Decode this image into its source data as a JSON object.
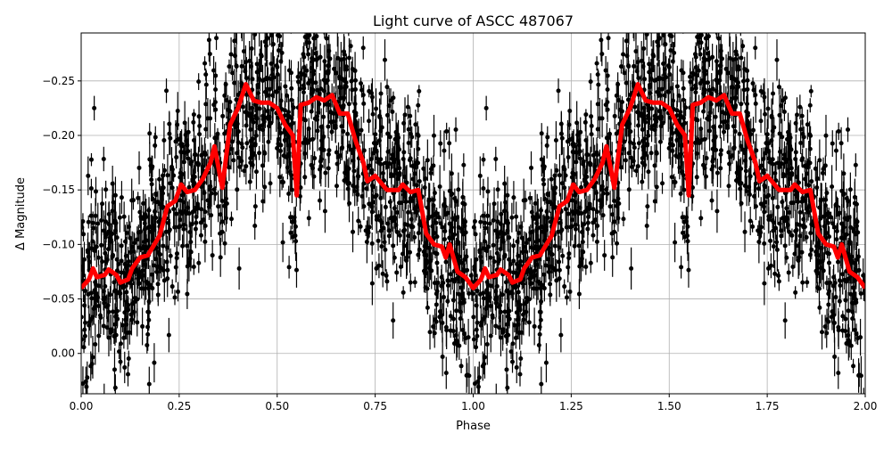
{
  "chart_data": {
    "type": "scatter",
    "title": "Light curve of ASCC 487067",
    "xlabel": "Phase",
    "ylabel": "Δ Magnitude",
    "xlim": [
      0,
      2
    ],
    "ylim": [
      0.037,
      -0.294
    ],
    "y_inverted": true,
    "grid": true,
    "x_ticks": [
      "0.00",
      "0.25",
      "0.50",
      "0.75",
      "1.00",
      "1.25",
      "1.50",
      "1.75",
      "2.00"
    ],
    "x_tick_values": [
      0,
      0.25,
      0.5,
      0.75,
      1,
      1.25,
      1.5,
      1.75,
      2
    ],
    "y_ticks": [
      "0.00",
      "−0.05",
      "−0.10",
      "−0.15",
      "−0.20",
      "−0.25"
    ],
    "y_tick_values": [
      0,
      -0.05,
      -0.1,
      -0.15,
      -0.2,
      -0.25
    ],
    "scatter_color": "#000000",
    "curve_color": "#ff0000",
    "binned_curve": {
      "period_repeats": 2,
      "phase": [
        0,
        0.02,
        0.03,
        0.04,
        0.06,
        0.07,
        0.09,
        0.1,
        0.12,
        0.13,
        0.15,
        0.17,
        0.2,
        0.22,
        0.24,
        0.255,
        0.27,
        0.29,
        0.31,
        0.33,
        0.34,
        0.36,
        0.38,
        0.4,
        0.42,
        0.44,
        0.46,
        0.48,
        0.5,
        0.52,
        0.54,
        0.55,
        0.56,
        0.58,
        0.6,
        0.62,
        0.64,
        0.66,
        0.68,
        0.7,
        0.72,
        0.73,
        0.75,
        0.78,
        0.81,
        0.82,
        0.84,
        0.86,
        0.88,
        0.9,
        0.92,
        0.93,
        0.94,
        0.96,
        0.98,
        1.0
      ],
      "magnitude": [
        -0.06,
        -0.068,
        -0.078,
        -0.07,
        -0.072,
        -0.077,
        -0.072,
        -0.065,
        -0.068,
        -0.078,
        -0.088,
        -0.09,
        -0.108,
        -0.135,
        -0.14,
        -0.155,
        -0.148,
        -0.15,
        -0.16,
        -0.175,
        -0.19,
        -0.152,
        -0.21,
        -0.225,
        -0.247,
        -0.232,
        -0.23,
        -0.23,
        -0.225,
        -0.21,
        -0.2,
        -0.145,
        -0.228,
        -0.23,
        -0.235,
        -0.232,
        -0.237,
        -0.22,
        -0.22,
        -0.195,
        -0.175,
        -0.158,
        -0.163,
        -0.15,
        -0.15,
        -0.155,
        -0.148,
        -0.15,
        -0.11,
        -0.1,
        -0.098,
        -0.088,
        -0.1,
        -0.075,
        -0.07,
        -0.06
      ]
    }
  }
}
